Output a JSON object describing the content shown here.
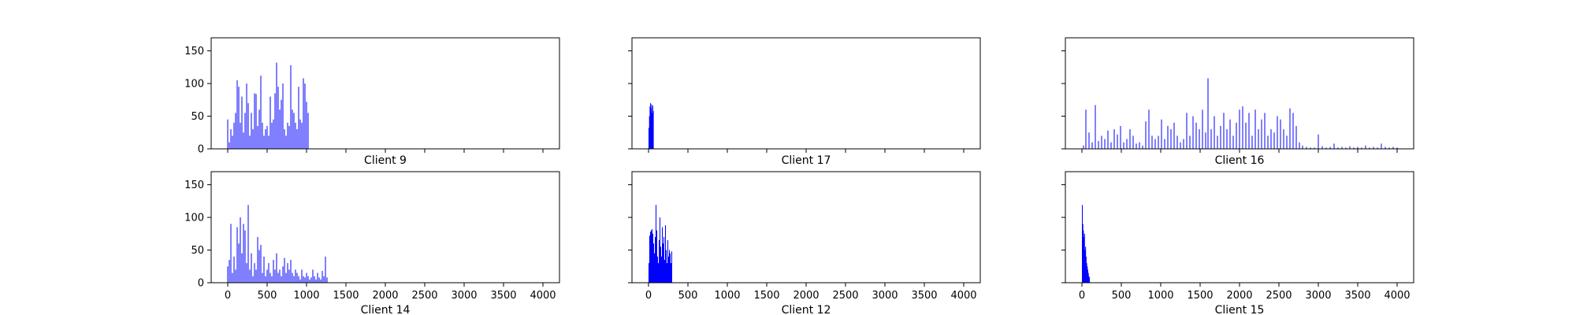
{
  "chart_data": [
    {
      "type": "bar",
      "title": "Client 9",
      "color": "#0000ff",
      "xlim": [
        -210,
        4210
      ],
      "ylim": [
        0,
        170
      ],
      "xticks": [
        0,
        500,
        1000,
        1500,
        2000,
        2500,
        3000,
        3500,
        4000
      ],
      "show_xtick_labels": false,
      "yticks": [
        0,
        50,
        100,
        150
      ],
      "show_ytick_labels": true,
      "x": [
        0,
        20,
        40,
        60,
        80,
        100,
        120,
        140,
        160,
        180,
        200,
        220,
        240,
        260,
        280,
        300,
        320,
        340,
        360,
        380,
        400,
        420,
        440,
        460,
        480,
        500,
        520,
        540,
        560,
        580,
        600,
        620,
        640,
        660,
        680,
        700,
        720,
        740,
        760,
        780,
        800,
        820,
        840,
        860,
        880,
        900,
        920,
        940,
        960,
        980,
        1000,
        1020
      ],
      "values": [
        45,
        10,
        30,
        20,
        40,
        55,
        105,
        95,
        40,
        80,
        25,
        55,
        100,
        70,
        20,
        55,
        30,
        85,
        84,
        35,
        60,
        112,
        40,
        20,
        30,
        35,
        20,
        80,
        40,
        45,
        85,
        132,
        95,
        60,
        75,
        100,
        30,
        20,
        40,
        35,
        128,
        60,
        55,
        40,
        30,
        95,
        45,
        40,
        108,
        100,
        72,
        55
      ]
    },
    {
      "type": "bar",
      "title": "Client 17",
      "color": "#0000ff",
      "xlim": [
        -210,
        4210
      ],
      "ylim": [
        0,
        170
      ],
      "xticks": [
        0,
        500,
        1000,
        1500,
        2000,
        2500,
        3000,
        3500,
        4000
      ],
      "show_xtick_labels": false,
      "yticks": [
        0,
        50,
        100,
        150
      ],
      "show_ytick_labels": false,
      "x": [
        5,
        12,
        19,
        26,
        33,
        40,
        47,
        54,
        61
      ],
      "values": [
        32,
        50,
        65,
        70,
        62,
        68,
        55,
        66,
        58
      ]
    },
    {
      "type": "bar",
      "title": "Client 16",
      "color": "#0000ff",
      "xlim": [
        -210,
        4210
      ],
      "ylim": [
        0,
        170
      ],
      "xticks": [
        0,
        500,
        1000,
        1500,
        2000,
        2500,
        3000,
        3500,
        4000
      ],
      "show_xtick_labels": false,
      "yticks": [
        0,
        50,
        100,
        150
      ],
      "show_ytick_labels": false,
      "x": [
        20,
        50,
        90,
        130,
        170,
        210,
        250,
        290,
        330,
        370,
        410,
        450,
        490,
        530,
        570,
        610,
        650,
        690,
        730,
        770,
        810,
        850,
        890,
        930,
        970,
        1010,
        1050,
        1090,
        1130,
        1170,
        1210,
        1250,
        1290,
        1330,
        1370,
        1410,
        1450,
        1490,
        1530,
        1570,
        1600,
        1640,
        1680,
        1720,
        1760,
        1800,
        1840,
        1880,
        1920,
        1960,
        2000,
        2040,
        2080,
        2120,
        2160,
        2200,
        2240,
        2280,
        2320,
        2360,
        2400,
        2440,
        2480,
        2520,
        2560,
        2600,
        2640,
        2680,
        2720,
        2760,
        2800,
        2850,
        2900,
        2950,
        3000,
        3050,
        3100,
        3150,
        3200,
        3250,
        3300,
        3350,
        3400,
        3450,
        3500,
        3550,
        3600,
        3650,
        3700,
        3750,
        3800,
        3850,
        3900,
        3950,
        4000
      ],
      "values": [
        5,
        60,
        25,
        10,
        67,
        12,
        20,
        15,
        28,
        10,
        30,
        22,
        35,
        10,
        15,
        30,
        20,
        8,
        10,
        5,
        42,
        60,
        20,
        15,
        20,
        45,
        15,
        35,
        30,
        40,
        20,
        10,
        15,
        55,
        20,
        50,
        40,
        30,
        60,
        25,
        108,
        30,
        50,
        20,
        35,
        55,
        30,
        45,
        20,
        40,
        60,
        65,
        40,
        55,
        20,
        60,
        30,
        45,
        55,
        20,
        30,
        25,
        50,
        45,
        30,
        20,
        62,
        55,
        35,
        10,
        5,
        3,
        2,
        2,
        22,
        4,
        2,
        3,
        8,
        2,
        3,
        2,
        4,
        2,
        3,
        2,
        5,
        2,
        3,
        2,
        8,
        3,
        2,
        3,
        2
      ]
    },
    {
      "type": "bar",
      "title": "Client 14",
      "color": "#0000ff",
      "xlim": [
        -210,
        4210
      ],
      "ylim": [
        0,
        170
      ],
      "xticks": [
        0,
        500,
        1000,
        1500,
        2000,
        2500,
        3000,
        3500,
        4000
      ],
      "show_xtick_labels": true,
      "yticks": [
        0,
        50,
        100,
        150
      ],
      "show_ytick_labels": true,
      "x": [
        0,
        20,
        40,
        60,
        80,
        100,
        120,
        140,
        160,
        180,
        200,
        220,
        240,
        260,
        280,
        300,
        320,
        340,
        360,
        380,
        400,
        420,
        440,
        460,
        480,
        500,
        520,
        540,
        560,
        580,
        600,
        620,
        640,
        660,
        680,
        700,
        720,
        740,
        760,
        780,
        800,
        820,
        840,
        860,
        880,
        900,
        920,
        940,
        960,
        980,
        1000,
        1020,
        1040,
        1060,
        1080,
        1100,
        1120,
        1140,
        1160,
        1180,
        1200,
        1220,
        1240,
        1260
      ],
      "values": [
        25,
        35,
        90,
        15,
        40,
        20,
        85,
        60,
        100,
        45,
        90,
        80,
        30,
        119,
        20,
        45,
        10,
        30,
        20,
        70,
        50,
        58,
        15,
        40,
        10,
        20,
        30,
        15,
        10,
        35,
        20,
        45,
        15,
        20,
        10,
        25,
        38,
        15,
        30,
        20,
        35,
        15,
        10,
        20,
        15,
        10,
        5,
        20,
        10,
        8,
        15,
        10,
        5,
        8,
        20,
        10,
        5,
        15,
        8,
        5,
        18,
        10,
        40,
        8
      ]
    },
    {
      "type": "bar",
      "title": "Client 12",
      "color": "#0000ff",
      "xlim": [
        -210,
        4210
      ],
      "ylim": [
        0,
        170
      ],
      "xticks": [
        0,
        500,
        1000,
        1500,
        2000,
        2500,
        3000,
        3500,
        4000
      ],
      "show_xtick_labels": true,
      "yticks": [
        0,
        50,
        100,
        150
      ],
      "show_ytick_labels": false,
      "x": [
        5,
        15,
        25,
        35,
        45,
        55,
        65,
        75,
        85,
        95,
        105,
        115,
        125,
        135,
        145,
        155,
        165,
        175,
        185,
        195,
        205,
        215,
        225,
        235,
        245,
        255,
        265,
        275,
        285,
        295
      ],
      "values": [
        30,
        72,
        78,
        80,
        82,
        75,
        60,
        45,
        70,
        119,
        80,
        40,
        30,
        65,
        100,
        55,
        40,
        85,
        60,
        70,
        35,
        88,
        50,
        30,
        65,
        40,
        50,
        45,
        30,
        48
      ]
    },
    {
      "type": "bar",
      "title": "Client 15",
      "color": "#0000ff",
      "xlim": [
        -210,
        4210
      ],
      "ylim": [
        0,
        170
      ],
      "xticks": [
        0,
        500,
        1000,
        1500,
        2000,
        2500,
        3000,
        3500,
        4000
      ],
      "show_xtick_labels": true,
      "yticks": [
        0,
        50,
        100,
        150
      ],
      "show_ytick_labels": false,
      "x": [
        5,
        12,
        19,
        26,
        33,
        40,
        47,
        54,
        61,
        68,
        75,
        82,
        89,
        96
      ],
      "values": [
        119,
        90,
        80,
        70,
        75,
        50,
        55,
        40,
        30,
        25,
        20,
        15,
        10,
        8
      ]
    }
  ]
}
